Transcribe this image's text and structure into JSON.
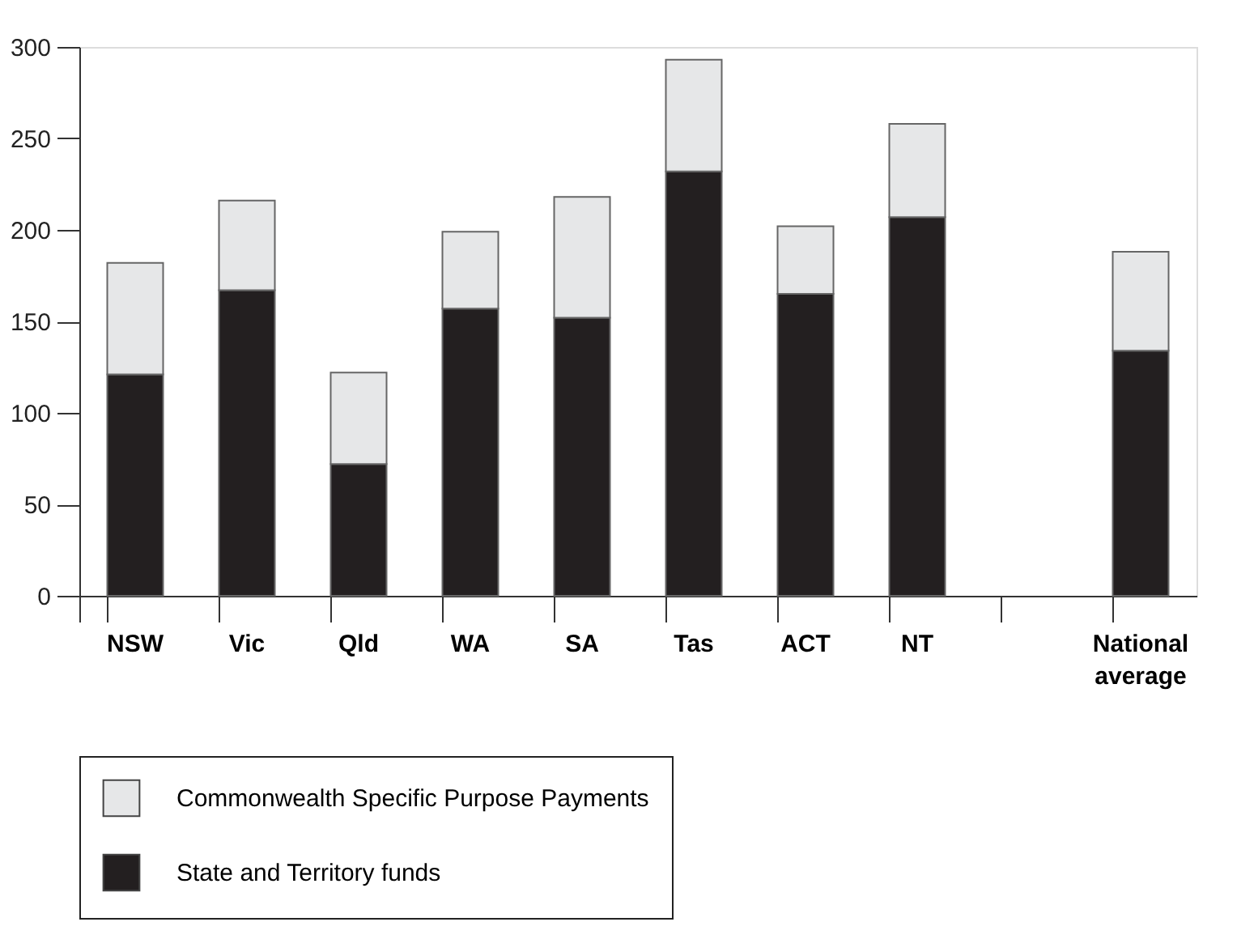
{
  "chart_data": {
    "type": "bar",
    "stacked": true,
    "categories": [
      "NSW",
      "Vic",
      "Qld",
      "WA",
      "SA",
      "Tas",
      "ACT",
      "NT",
      null,
      "National average"
    ],
    "series": [
      {
        "name": "State and Territory funds",
        "color": "#231f20",
        "values": [
          121,
          167,
          72,
          157,
          152,
          232,
          165,
          207,
          null,
          134
        ]
      },
      {
        "name": "Commonwealth Specific Purpose Payments",
        "color": "#e6e7e8",
        "values": [
          61,
          49,
          50,
          42,
          66,
          61,
          37,
          51,
          null,
          54
        ]
      }
    ],
    "ylim": [
      0,
      300
    ],
    "yticks": [
      0,
      50,
      100,
      150,
      200,
      250,
      300
    ],
    "grid": false,
    "legend": "bottom"
  }
}
